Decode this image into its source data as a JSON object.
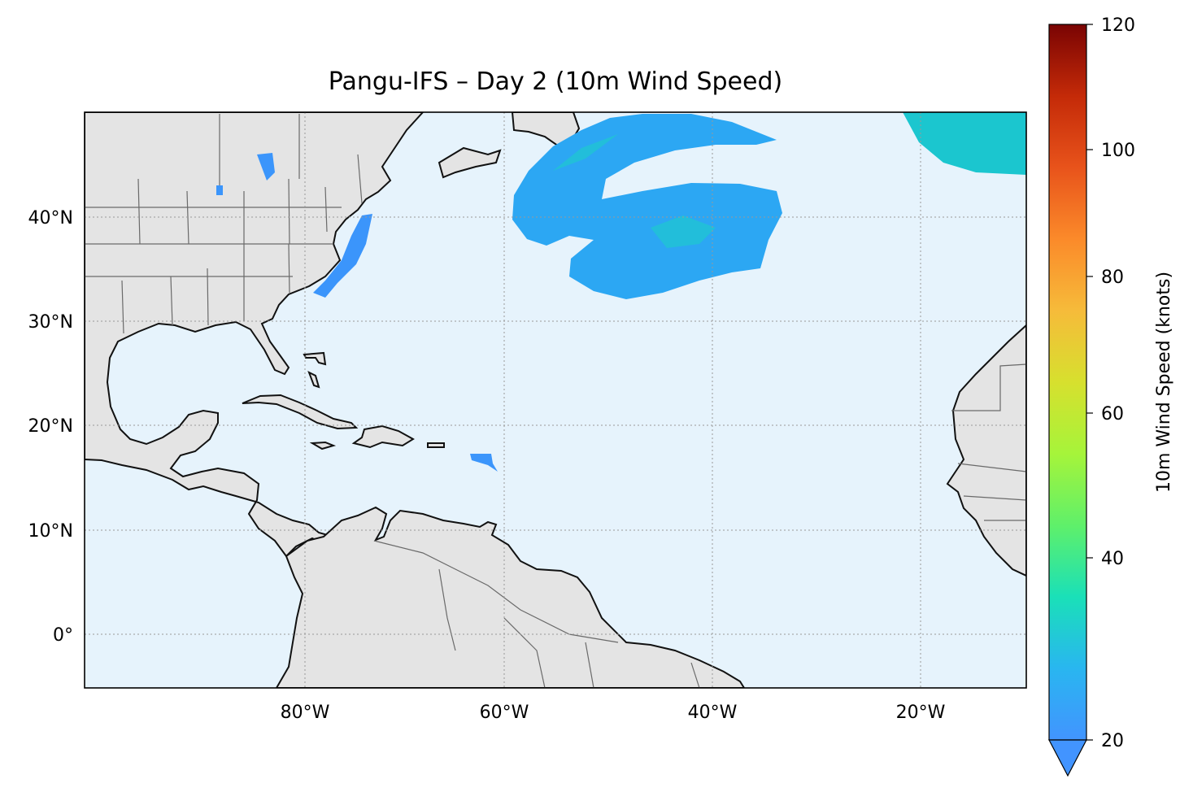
{
  "title": "Pangu-IFS – Day 2 (10m Wind Speed)",
  "map": {
    "lon_range": [
      -100,
      -10
    ],
    "lat_range": [
      -5,
      50
    ],
    "lon_ticks": [
      {
        "value": -80,
        "label": "80°W"
      },
      {
        "value": -60,
        "label": "60°W"
      },
      {
        "value": -40,
        "label": "40°W"
      },
      {
        "value": -20,
        "label": "20°W"
      }
    ],
    "lat_ticks": [
      {
        "value": 0,
        "label": "0°"
      },
      {
        "value": 10,
        "label": "10°N"
      },
      {
        "value": 20,
        "label": "20°N"
      },
      {
        "value": 30,
        "label": "30°N"
      },
      {
        "value": 40,
        "label": "40°N"
      }
    ],
    "gridlines": true,
    "ocean_color": "#e6f3fc",
    "land_color": "#e4e4e4",
    "coast_color": "#111111",
    "border_color": "#6a6a6a"
  },
  "colorbar": {
    "label": "10m Wind Speed (knots)",
    "min": 20,
    "max": 120,
    "extend": "min",
    "ticks": [
      {
        "value": 20,
        "label": "20"
      },
      {
        "value": 40,
        "label": "40"
      },
      {
        "value": 60,
        "label": "60"
      },
      {
        "value": 80,
        "label": "80"
      },
      {
        "value": 100,
        "label": "100"
      },
      {
        "value": 120,
        "label": "120"
      }
    ],
    "colormap": [
      "#4294ff",
      "#29b6f0",
      "#1ae0b8",
      "#5ff06a",
      "#a6f43a",
      "#d7e02e",
      "#f6bb3a",
      "#fb8a2a",
      "#e8531b",
      "#c42a08",
      "#7a0403"
    ]
  }
}
